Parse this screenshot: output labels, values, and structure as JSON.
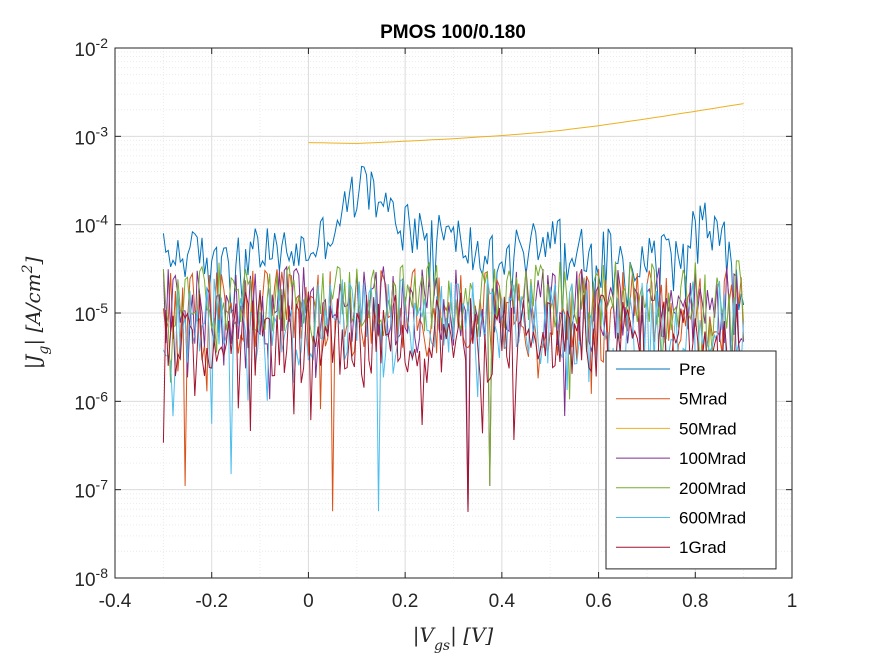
{
  "chart_data": {
    "type": "line",
    "title": "PMOS 100/0.180",
    "xlabel": "|V_gs| [V]",
    "ylabel": "|J_g| [A/cm^2]",
    "xlim": [
      -0.4,
      1.0
    ],
    "ylim": [
      1e-08,
      0.01
    ],
    "yscale": "log",
    "grid": "major and minor",
    "legend_position": "bottom-right",
    "x_ticks": [
      "-0.4",
      "-0.2",
      "0",
      "0.2",
      "0.4",
      "0.6",
      "0.8",
      "1"
    ],
    "y_ticks": [
      {
        "base": "10",
        "exp": "-8"
      },
      {
        "base": "10",
        "exp": "-7"
      },
      {
        "base": "10",
        "exp": "-6"
      },
      {
        "base": "10",
        "exp": "-5"
      },
      {
        "base": "10",
        "exp": "-4"
      },
      {
        "base": "10",
        "exp": "-3"
      },
      {
        "base": "10",
        "exp": "-2"
      }
    ],
    "series": [
      {
        "name": "Pre",
        "color": "#0072BD",
        "x_range": [
          -0.3,
          0.9
        ],
        "kind": "noisy",
        "anchors": [
          [
            -0.3,
            4.5e-05
          ],
          [
            0.0,
            5e-05
          ],
          [
            0.05,
            9e-05
          ],
          [
            0.09,
            0.0002
          ],
          [
            0.12,
            0.0003
          ],
          [
            0.15,
            0.00015
          ],
          [
            0.22,
            0.0001
          ],
          [
            0.3,
            7e-05
          ],
          [
            0.38,
            4e-05
          ],
          [
            0.45,
            5e-05
          ],
          [
            0.5,
            8e-05
          ],
          [
            0.6,
            5e-05
          ],
          [
            0.7,
            4e-05
          ],
          [
            0.77,
            6e-05
          ],
          [
            0.81,
            0.00012
          ],
          [
            0.86,
            6e-05
          ],
          [
            0.9,
            1e-05
          ]
        ],
        "spread": 0.28
      },
      {
        "name": "5Mrad",
        "color": "#D95319",
        "x_range": [
          -0.3,
          0.9
        ],
        "kind": "noisy",
        "anchors": [
          [
            -0.3,
            1e-05
          ],
          [
            0.9,
            1e-05
          ]
        ],
        "spread": 0.5,
        "dips": [
          [
            -0.255,
            1.1e-07
          ],
          [
            0.05,
            5.7e-08
          ]
        ]
      },
      {
        "name": "50Mrad",
        "color": "#EDB120",
        "x_range": [
          0.0,
          0.9
        ],
        "kind": "smooth",
        "anchors": [
          [
            0.0,
            0.00085
          ],
          [
            0.1,
            0.00083
          ],
          [
            0.2,
            0.00088
          ],
          [
            0.3,
            0.00094
          ],
          [
            0.4,
            0.00102
          ],
          [
            0.5,
            0.00113
          ],
          [
            0.6,
            0.00132
          ],
          [
            0.7,
            0.00158
          ],
          [
            0.8,
            0.00192
          ],
          [
            0.9,
            0.00235
          ]
        ]
      },
      {
        "name": "100Mrad",
        "color": "#7E2F8E",
        "x_range": [
          -0.3,
          0.9
        ],
        "kind": "noisy",
        "anchors": [
          [
            -0.3,
            1.2e-05
          ],
          [
            0.9,
            1.2e-05
          ]
        ],
        "spread": 0.45,
        "dips": [
          [
            0.33,
            5.6e-08
          ],
          [
            0.375,
            1.1e-07
          ]
        ]
      },
      {
        "name": "200Mrad",
        "color": "#77AC30",
        "x_range": [
          -0.3,
          0.9
        ],
        "kind": "noisy",
        "anchors": [
          [
            -0.3,
            1.5e-05
          ],
          [
            0.9,
            1.6e-05
          ]
        ],
        "spread": 0.4,
        "dips": [
          [
            0.376,
            1.1e-07
          ]
        ]
      },
      {
        "name": "600Mrad",
        "color": "#4DBEEE",
        "x_range": [
          -0.3,
          0.9
        ],
        "kind": "noisy",
        "anchors": [
          [
            -0.3,
            8e-06
          ],
          [
            0.9,
            8e-06
          ]
        ],
        "spread": 0.5,
        "dips": [
          [
            0.145,
            5.7e-08
          ],
          [
            -0.16,
            1.5e-07
          ]
        ]
      },
      {
        "name": "1Grad",
        "color": "#A2142F",
        "x_range": [
          -0.3,
          0.9
        ],
        "kind": "noisy",
        "anchors": [
          [
            -0.3,
            6e-06
          ],
          [
            0.9,
            5e-06
          ]
        ],
        "spread": 0.5,
        "dips": [
          [
            0.33,
            5.6e-08
          ],
          [
            -0.3,
            3.4e-07
          ]
        ]
      }
    ]
  }
}
